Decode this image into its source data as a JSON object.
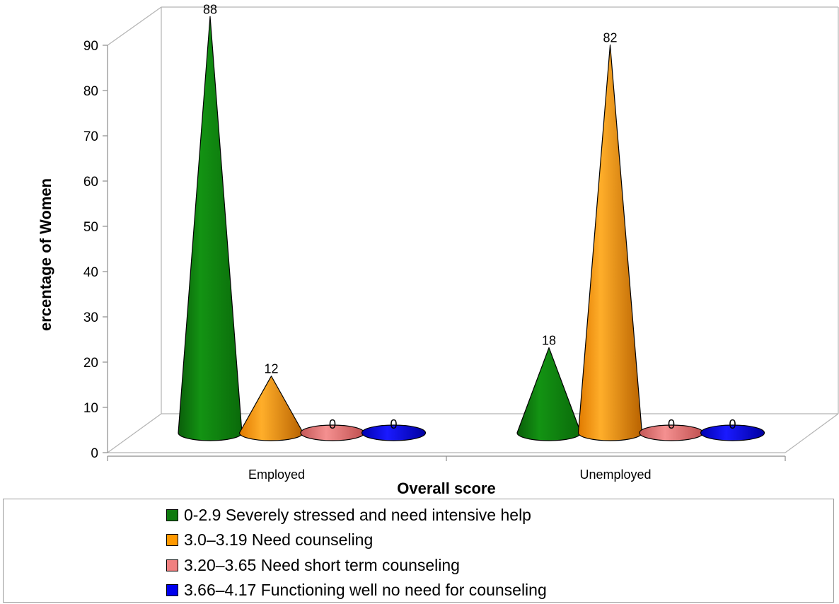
{
  "chart_data": {
    "type": "bar",
    "shape": "cone",
    "categories": [
      "Employed",
      "Unemployed"
    ],
    "series": [
      {
        "name": "0-2.9 Severely stressed and need intensive help",
        "values": [
          88,
          18
        ],
        "color": "#0e7a0e"
      },
      {
        "name": "3.0–3.19 Need counseling",
        "values": [
          12,
          82
        ],
        "color": "#ff9900"
      },
      {
        "name": "3.20–3.65 Need short term counseling",
        "values": [
          0,
          0
        ],
        "color": "#f08080"
      },
      {
        "name": "3.66–4.17 Functioning well no need for counseling",
        "values": [
          0,
          0
        ],
        "color": "#0000ee"
      }
    ],
    "xlabel": "Overall score",
    "ylabel": "ercentage of Women",
    "ylim": [
      0,
      90
    ],
    "yticks": [
      "0",
      "10",
      "20",
      "30",
      "40",
      "50",
      "60",
      "70",
      "80",
      "90"
    ],
    "grid": false,
    "legend_position": "bottom"
  }
}
